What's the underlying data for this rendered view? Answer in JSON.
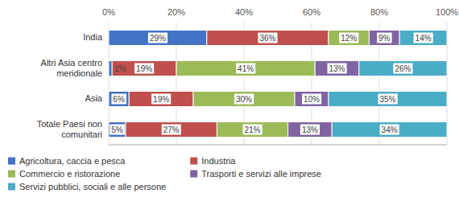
{
  "chart_data": {
    "type": "bar",
    "orientation": "horizontal",
    "stacked": true,
    "data_labels": true,
    "grid": true,
    "legend": "bottom",
    "categories": [
      "India",
      "Altri Asia centro\nmeridionale",
      "Asia",
      "Totale Paesi non\ncomunitari"
    ],
    "xlim": [
      0,
      100
    ],
    "xticks": [
      {
        "value": 0,
        "label": "0%"
      },
      {
        "value": 20,
        "label": "20%"
      },
      {
        "value": 40,
        "label": "40%"
      },
      {
        "value": 60,
        "label": "60%"
      },
      {
        "value": 80,
        "label": "80%"
      },
      {
        "value": 100,
        "label": "100%"
      }
    ],
    "series": [
      {
        "name": "Agricoltura, caccia e pesca",
        "color": "#4472C4",
        "values": [
          29,
          1,
          6,
          5
        ],
        "value_labels": [
          "29%",
          "1%",
          "6%",
          "5%"
        ]
      },
      {
        "name": "Industria",
        "color": "#C0504D",
        "values": [
          36,
          19,
          19,
          27
        ],
        "value_labels": [
          "36%",
          "19%",
          "19%",
          "27%"
        ]
      },
      {
        "name": "Commercio e ristorazione",
        "color": "#9BBB59",
        "values": [
          12,
          41,
          30,
          21
        ],
        "value_labels": [
          "12%",
          "41%",
          "30%",
          "21%"
        ]
      },
      {
        "name": "Trasporti e servizi alle imprese",
        "color": "#8064A2",
        "values": [
          9,
          13,
          10,
          13
        ],
        "value_labels": [
          "9%",
          "13%",
          "10%",
          "13%"
        ]
      },
      {
        "name": "Servizi pubblici, sociali e alle persone",
        "color": "#4BACC6",
        "values": [
          14,
          26,
          35,
          34
        ],
        "value_labels": [
          "14%",
          "26%",
          "35%",
          "34%"
        ]
      }
    ]
  }
}
